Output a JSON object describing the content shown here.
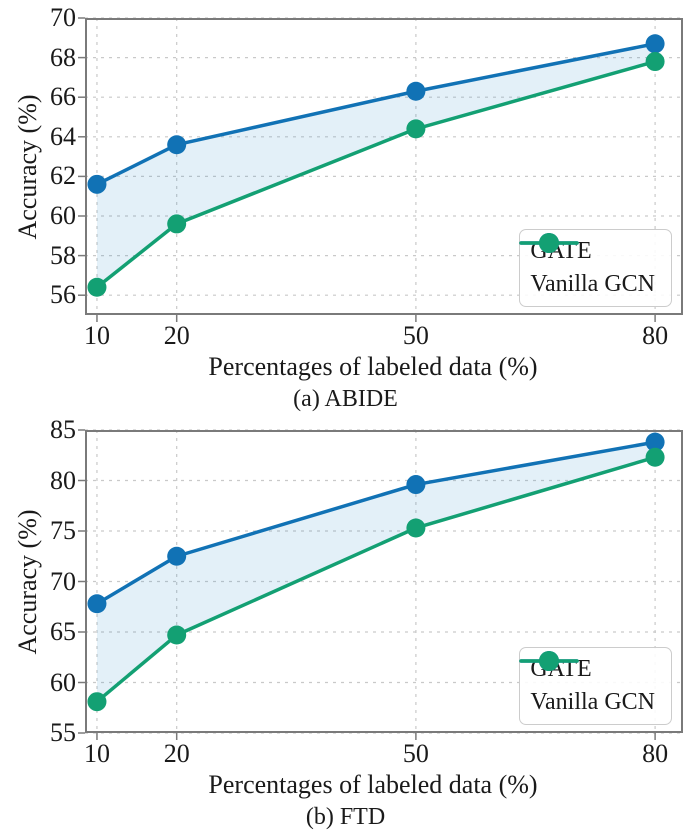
{
  "figure": {
    "background": "#ffffff",
    "spine_color": "#7a7a7a",
    "grid_color": "#c9c9c9",
    "text_color": "#1a1a1a",
    "fill_between_color": "rgba(60,150,205,0.14)"
  },
  "chart_data": [
    {
      "type": "line",
      "caption": "(a) ABIDE",
      "xlabel": "Percentages of labeled data (%)",
      "ylabel": "Accuracy (%)",
      "x": [
        10,
        20,
        50,
        80
      ],
      "xticks": [
        10,
        20,
        50,
        80
      ],
      "xlim": [
        8.5,
        83.5
      ],
      "ylim": [
        55,
        70
      ],
      "yticks": [
        56,
        58,
        60,
        62,
        64,
        66,
        68,
        70
      ],
      "grid": true,
      "legend_position": "lower right",
      "fill_between": [
        "GATE",
        "Vanilla GCN"
      ],
      "series": [
        {
          "name": "GATE",
          "color": "#1172b5",
          "marker": "circle",
          "values": [
            61.6,
            63.6,
            66.3,
            68.7
          ]
        },
        {
          "name": "Vanilla GCN",
          "color": "#13a073",
          "marker": "circle",
          "values": [
            56.4,
            59.6,
            64.4,
            67.8
          ]
        }
      ]
    },
    {
      "type": "line",
      "caption": "(b) FTD",
      "xlabel": "Percentages of labeled data (%)",
      "ylabel": "Accuracy (%)",
      "x": [
        10,
        20,
        50,
        80
      ],
      "xticks": [
        10,
        20,
        50,
        80
      ],
      "xlim": [
        8.5,
        83.5
      ],
      "ylim": [
        55,
        85
      ],
      "yticks": [
        55,
        60,
        65,
        70,
        75,
        80,
        85
      ],
      "grid": true,
      "legend_position": "lower right",
      "fill_between": [
        "GATE",
        "Vanilla GCN"
      ],
      "series": [
        {
          "name": "GATE",
          "color": "#1172b5",
          "marker": "circle",
          "values": [
            67.8,
            72.5,
            79.6,
            83.8
          ]
        },
        {
          "name": "Vanilla GCN",
          "color": "#13a073",
          "marker": "circle",
          "values": [
            58.1,
            64.7,
            75.3,
            82.3
          ]
        }
      ]
    }
  ]
}
